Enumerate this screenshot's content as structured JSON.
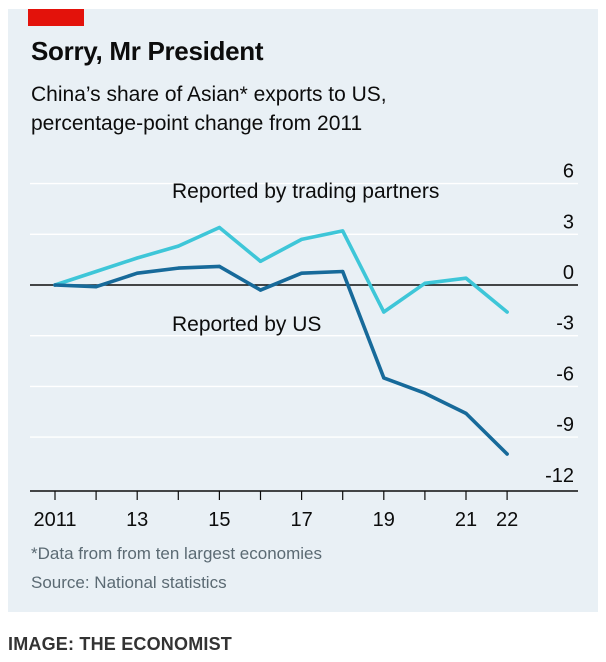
{
  "header": {
    "title": "Sorry, Mr President",
    "subtitle_line1": "China’s share of Asian* exports to US,",
    "subtitle_line2": "percentage-point change from 2011"
  },
  "footer": {
    "footnote": "*Data from from ten largest economies",
    "source": "Source: National statistics",
    "credit": "IMAGE: THE ECONOMIST"
  },
  "colors": {
    "brand_tag": "#e3120b",
    "panel_bg": "#e9f0f5",
    "partners_line": "#3ec6d8",
    "us_line": "#176a9a",
    "zero_line": "#0c0c0c",
    "grid": "#ffffff"
  },
  "chart_data": {
    "type": "line",
    "x": [
      2011,
      2012,
      2013,
      2014,
      2015,
      2016,
      2017,
      2018,
      2019,
      2020,
      2021,
      2022
    ],
    "x_tick_labels": [
      {
        "x": 2011,
        "label": "2011"
      },
      {
        "x": 2013,
        "label": "13"
      },
      {
        "x": 2015,
        "label": "15"
      },
      {
        "x": 2017,
        "label": "17"
      },
      {
        "x": 2019,
        "label": "19"
      },
      {
        "x": 2021,
        "label": "21"
      },
      {
        "x": 2022,
        "label": "22"
      }
    ],
    "x_minor_ticks": [
      2012,
      2014,
      2016,
      2018,
      2020
    ],
    "y_ticks": [
      6,
      3,
      0,
      -3,
      -6,
      -9,
      -12
    ],
    "y_tick_labels": [
      "6",
      "3",
      "0",
      "-3",
      "-6",
      "-9",
      "-12"
    ],
    "ylim": [
      -12,
      6
    ],
    "grid": true,
    "series": [
      {
        "name": "Reported by trading partners",
        "values": [
          0,
          0.8,
          1.6,
          2.3,
          3.4,
          1.4,
          2.7,
          3.2,
          -1.6,
          0.1,
          0.4,
          -1.6
        ]
      },
      {
        "name": "Reported by US",
        "values": [
          0,
          -0.1,
          0.7,
          1.0,
          1.1,
          -0.3,
          0.7,
          0.8,
          -5.5,
          -6.4,
          -7.6,
          -10.0
        ]
      }
    ]
  }
}
